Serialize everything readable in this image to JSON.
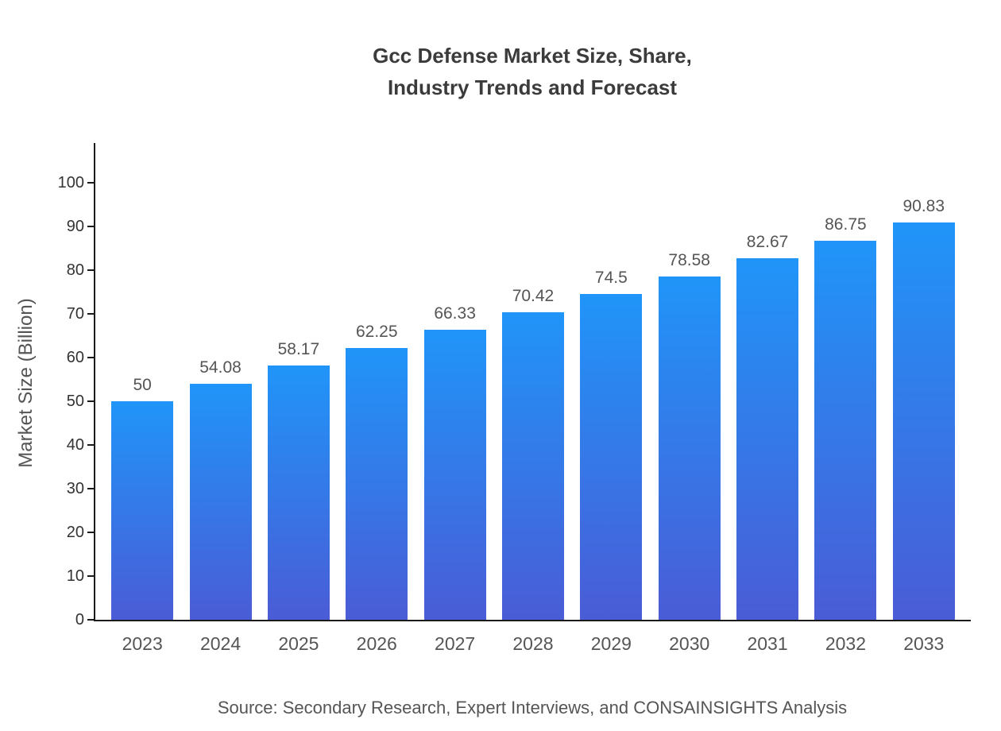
{
  "chart_data": {
    "type": "bar",
    "title": "Gcc Defense Market Size, Share, Industry Trends and Forecast",
    "title_lines": [
      "Gcc Defense Market Size, Share,",
      "Industry Trends and Forecast"
    ],
    "categories": [
      "2023",
      "2024",
      "2025",
      "2026",
      "2027",
      "2028",
      "2029",
      "2030",
      "2031",
      "2032",
      "2033"
    ],
    "values": [
      50,
      54.08,
      58.17,
      62.25,
      66.33,
      70.42,
      74.5,
      78.58,
      82.67,
      86.75,
      90.83
    ],
    "value_labels": [
      "50",
      "54.08",
      "58.17",
      "62.25",
      "66.33",
      "70.42",
      "74.5",
      "78.58",
      "82.67",
      "86.75",
      "90.83"
    ],
    "xlabel": "",
    "ylabel": "Market Size (Billion)",
    "ylim": [
      0,
      100
    ],
    "yticks": [
      0,
      10,
      20,
      30,
      40,
      50,
      60,
      70,
      80,
      90,
      100
    ],
    "grid": false,
    "legend": "none",
    "bar_color_top": "#2095f9",
    "bar_color_bottom": "#4a5cd6"
  },
  "footer": {
    "source": "Source: Secondary Research, Expert Interviews, and CONSAINSIGHTS Analysis"
  }
}
